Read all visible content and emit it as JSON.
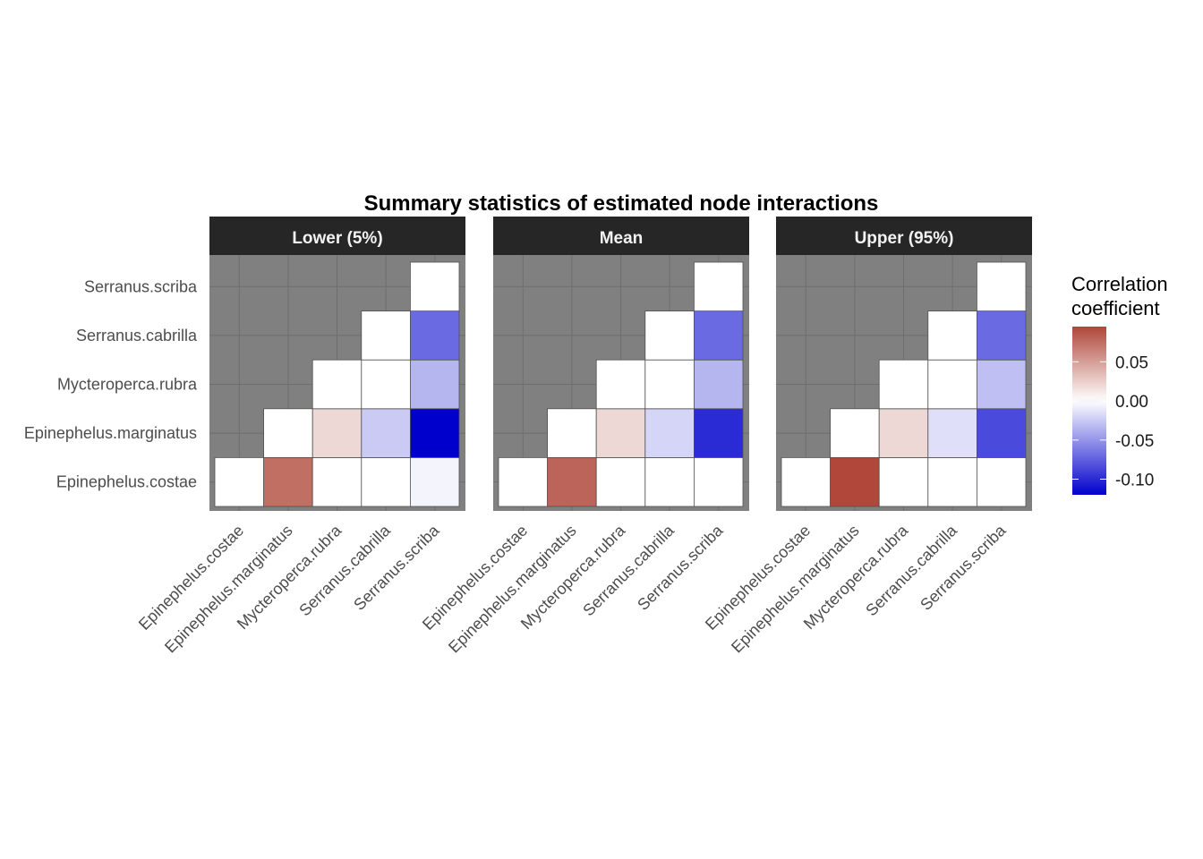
{
  "chart_data": {
    "type": "heatmap",
    "title": "Summary statistics of estimated node interactions",
    "variables": [
      "Epinephelus.costae",
      "Epinephelus.marginatus",
      "Mycteroperca.rubra",
      "Serranus.cabrilla",
      "Serranus.scriba"
    ],
    "panels": [
      {
        "name": "Lower (5%)",
        "matrix": [
          [
            0,
            0.075,
            0,
            0,
            -0.005
          ],
          [
            0,
            0,
            0.02,
            -0.025,
            -0.12
          ],
          [
            0,
            0,
            0,
            0,
            -0.035
          ],
          [
            0,
            0,
            0,
            0,
            -0.07
          ],
          [
            0,
            0,
            0,
            0,
            0
          ]
        ]
      },
      {
        "name": "Mean",
        "matrix": [
          [
            0,
            0.08,
            0,
            0,
            0
          ],
          [
            0,
            0,
            0.02,
            -0.02,
            -0.1
          ],
          [
            0,
            0,
            0,
            0,
            -0.035
          ],
          [
            0,
            0,
            0,
            0,
            -0.07
          ],
          [
            0,
            0,
            0,
            0,
            0
          ]
        ]
      },
      {
        "name": "Upper (95%)",
        "matrix": [
          [
            0,
            0.095,
            0,
            0,
            0
          ],
          [
            0,
            0,
            0.02,
            -0.015,
            -0.085
          ],
          [
            0,
            0,
            0,
            0,
            -0.03
          ],
          [
            0,
            0,
            0,
            0,
            -0.07
          ],
          [
            0,
            0,
            0,
            0,
            0
          ]
        ]
      }
    ],
    "legend": {
      "title_lines": [
        "Correlation",
        "coefficient"
      ],
      "breaks": [
        0.05,
        0.0,
        -0.05,
        -0.1
      ],
      "break_labels": [
        "0.05",
        "0.00",
        "-0.05",
        "-0.10"
      ],
      "limits": [
        -0.12,
        0.095
      ],
      "placement": "right"
    },
    "colors": {
      "low": "#0000cd",
      "mid": "#ffffff",
      "high": "#b0473a",
      "panel_background": "#808080",
      "grid": "#6e6e6e",
      "strip_background": "#262626",
      "cell_border": "#505050"
    },
    "grid": true
  }
}
